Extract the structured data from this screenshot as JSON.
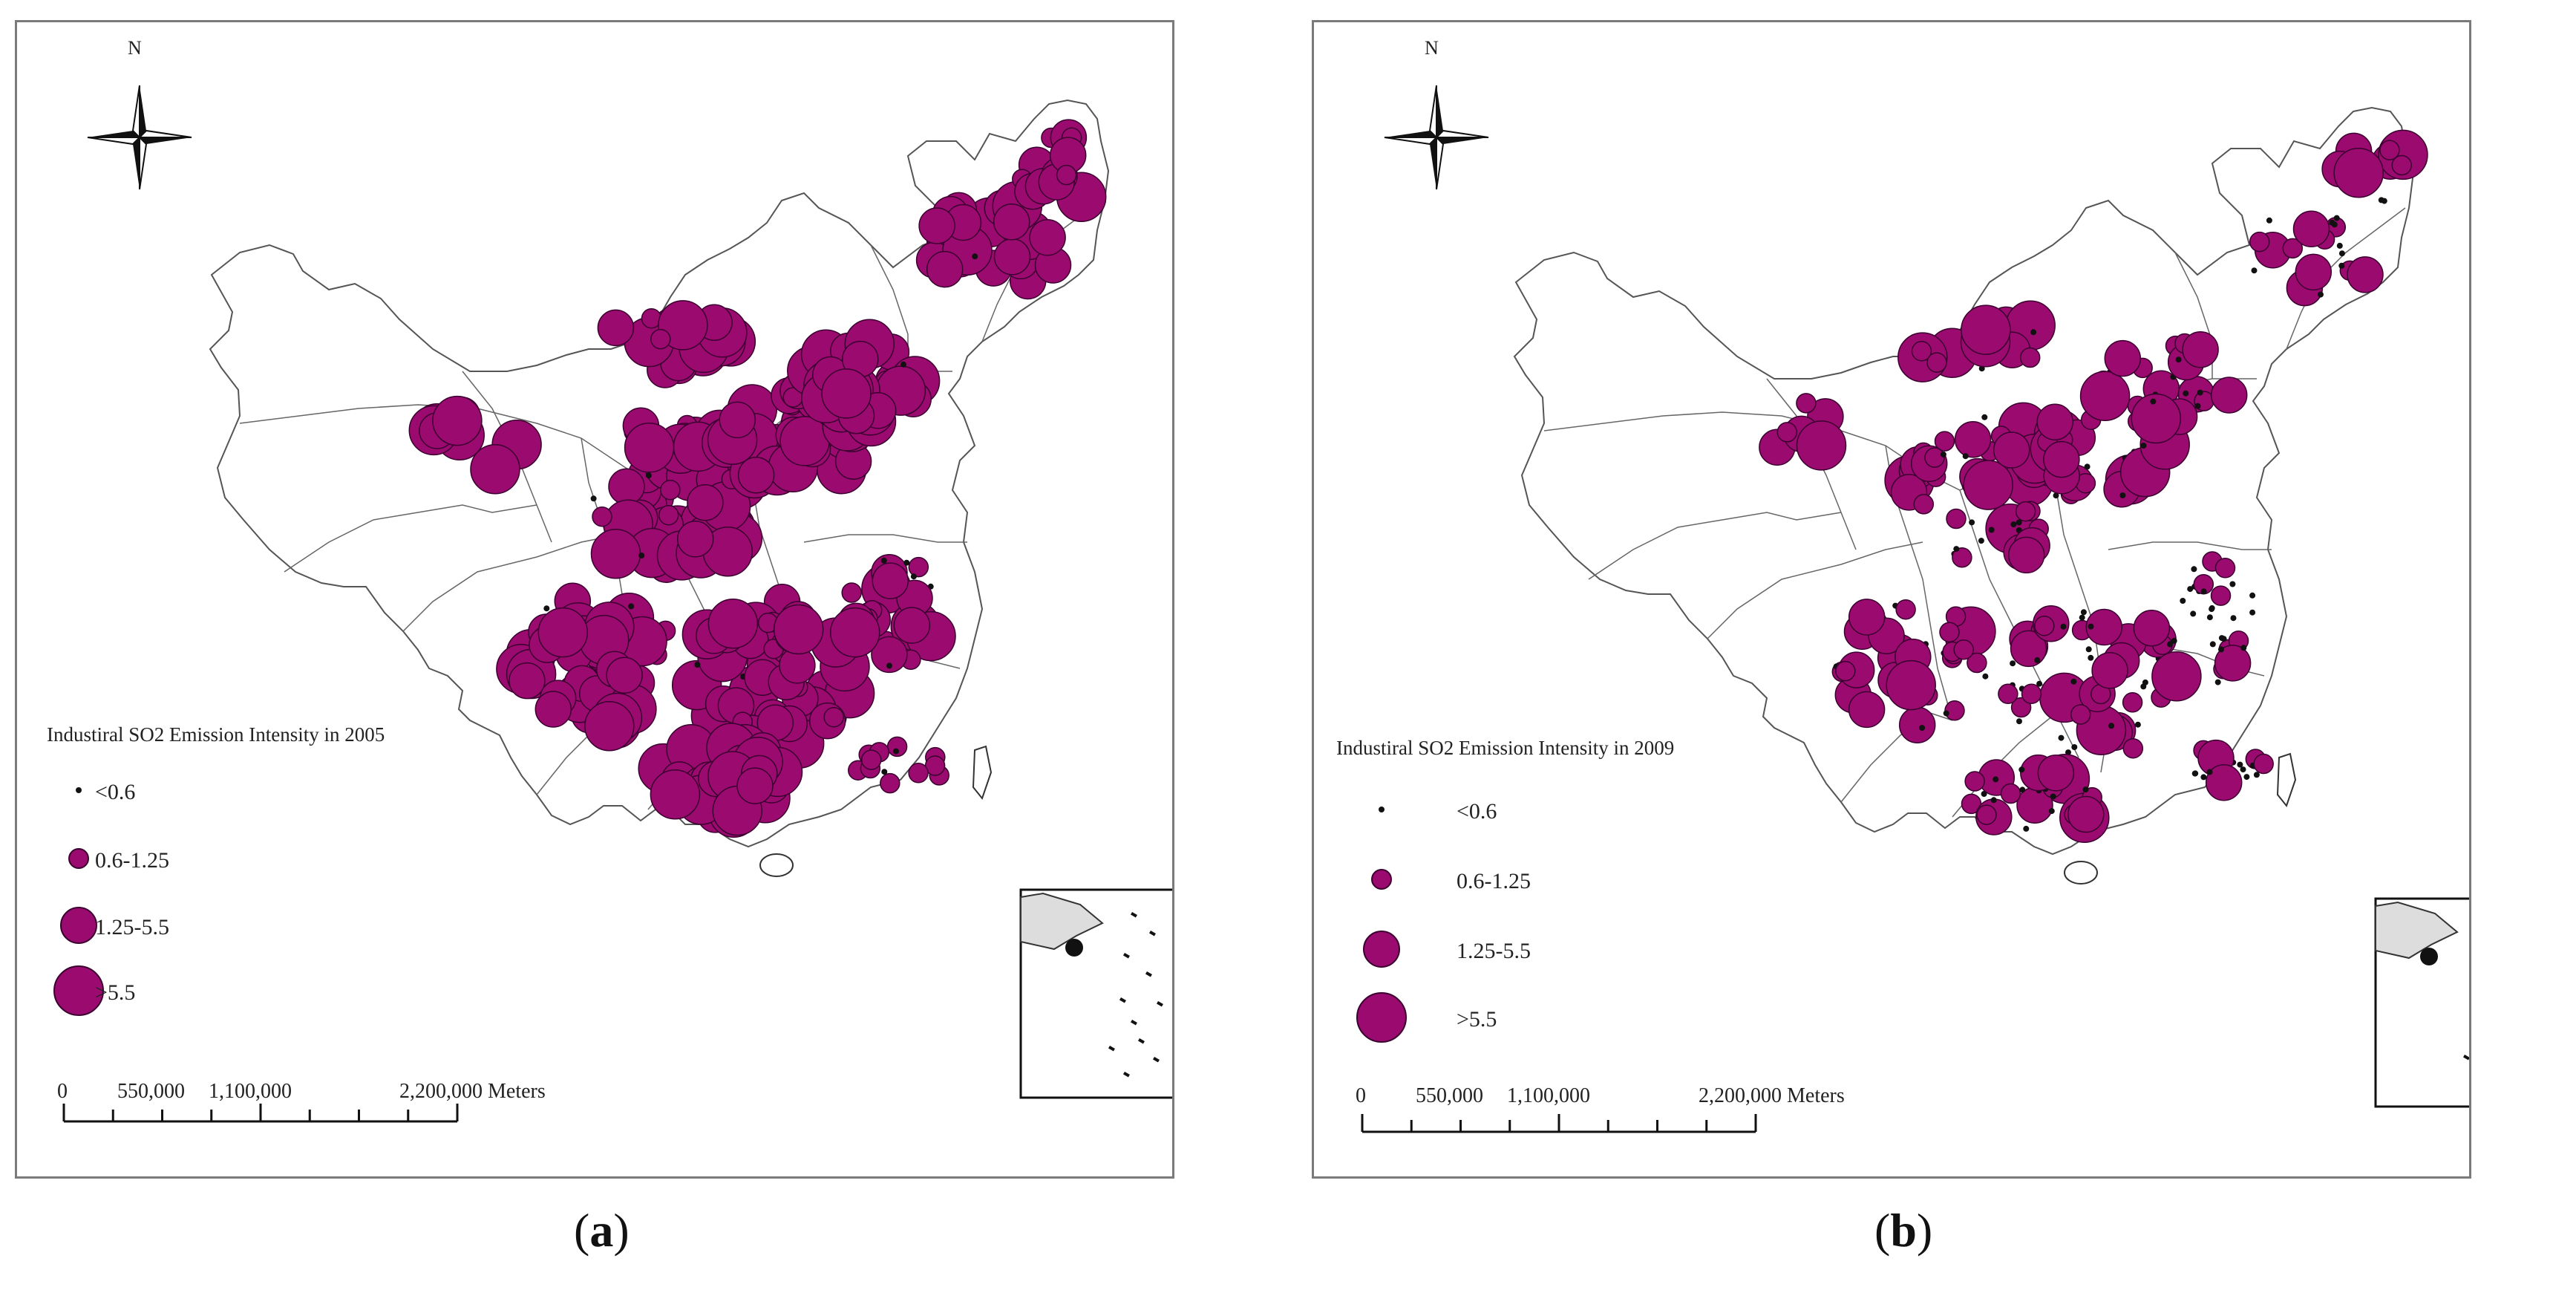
{
  "north_label": "N",
  "symbol_color": "#9b0a6e",
  "panels": [
    {
      "id": "a",
      "caption_letter": "a",
      "legend_title": "Industiral SO2 Emission Intensity in 2005",
      "legend_classes": [
        "<0.6",
        "0.6-1.25",
        "1.25-5.5",
        ">5.5"
      ],
      "scale_labels": [
        "0",
        "550,000",
        "1,100,000",
        "2,200,000 Meters"
      ]
    },
    {
      "id": "b",
      "caption_letter": "b",
      "legend_title": "Industiral SO2 Emission Intensity in 2009",
      "legend_classes": [
        "<0.6",
        "0.6-1.25",
        "1.25-5.5",
        ">5.5"
      ],
      "scale_labels": [
        "0",
        "550,000",
        "1,100,000",
        "2,200,000 Meters"
      ]
    }
  ]
}
